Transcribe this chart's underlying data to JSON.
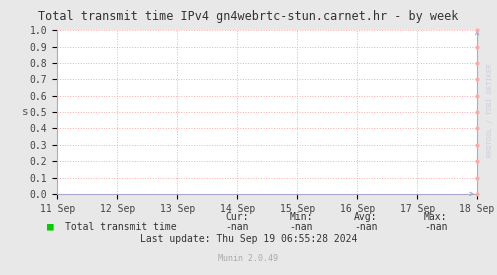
{
  "title": "Total transmit time IPv4 gn4webrtc-stun.carnet.hr - by week",
  "ylabel": "s",
  "background_color": "#e8e8e8",
  "plot_bg_color": "#ffffff",
  "grid_color": "#ffaaaa",
  "axis_color": "#aaaacc",
  "title_color": "#333333",
  "ylim": [
    0.0,
    1.0
  ],
  "yticks": [
    0.0,
    0.1,
    0.2,
    0.3,
    0.4,
    0.5,
    0.6,
    0.7,
    0.8,
    0.9,
    1.0
  ],
  "xtick_labels": [
    "11 Sep",
    "12 Sep",
    "13 Sep",
    "14 Sep",
    "15 Sep",
    "16 Sep",
    "17 Sep",
    "18 Sep"
  ],
  "legend_label": "Total transmit time",
  "legend_color": "#00cc00",
  "cur_val": "-nan",
  "min_val": "-nan",
  "avg_val": "-nan",
  "max_val": "-nan",
  "last_update": "Last update: Thu Sep 19 06:55:28 2024",
  "munin_version": "Munin 2.0.49",
  "watermark": "RRDTOOL / TOBI OETIKER",
  "font_family": "monospace",
  "title_fontsize": 8.5,
  "tick_fontsize": 7,
  "legend_fontsize": 7,
  "watermark_color": "#ccccdd"
}
